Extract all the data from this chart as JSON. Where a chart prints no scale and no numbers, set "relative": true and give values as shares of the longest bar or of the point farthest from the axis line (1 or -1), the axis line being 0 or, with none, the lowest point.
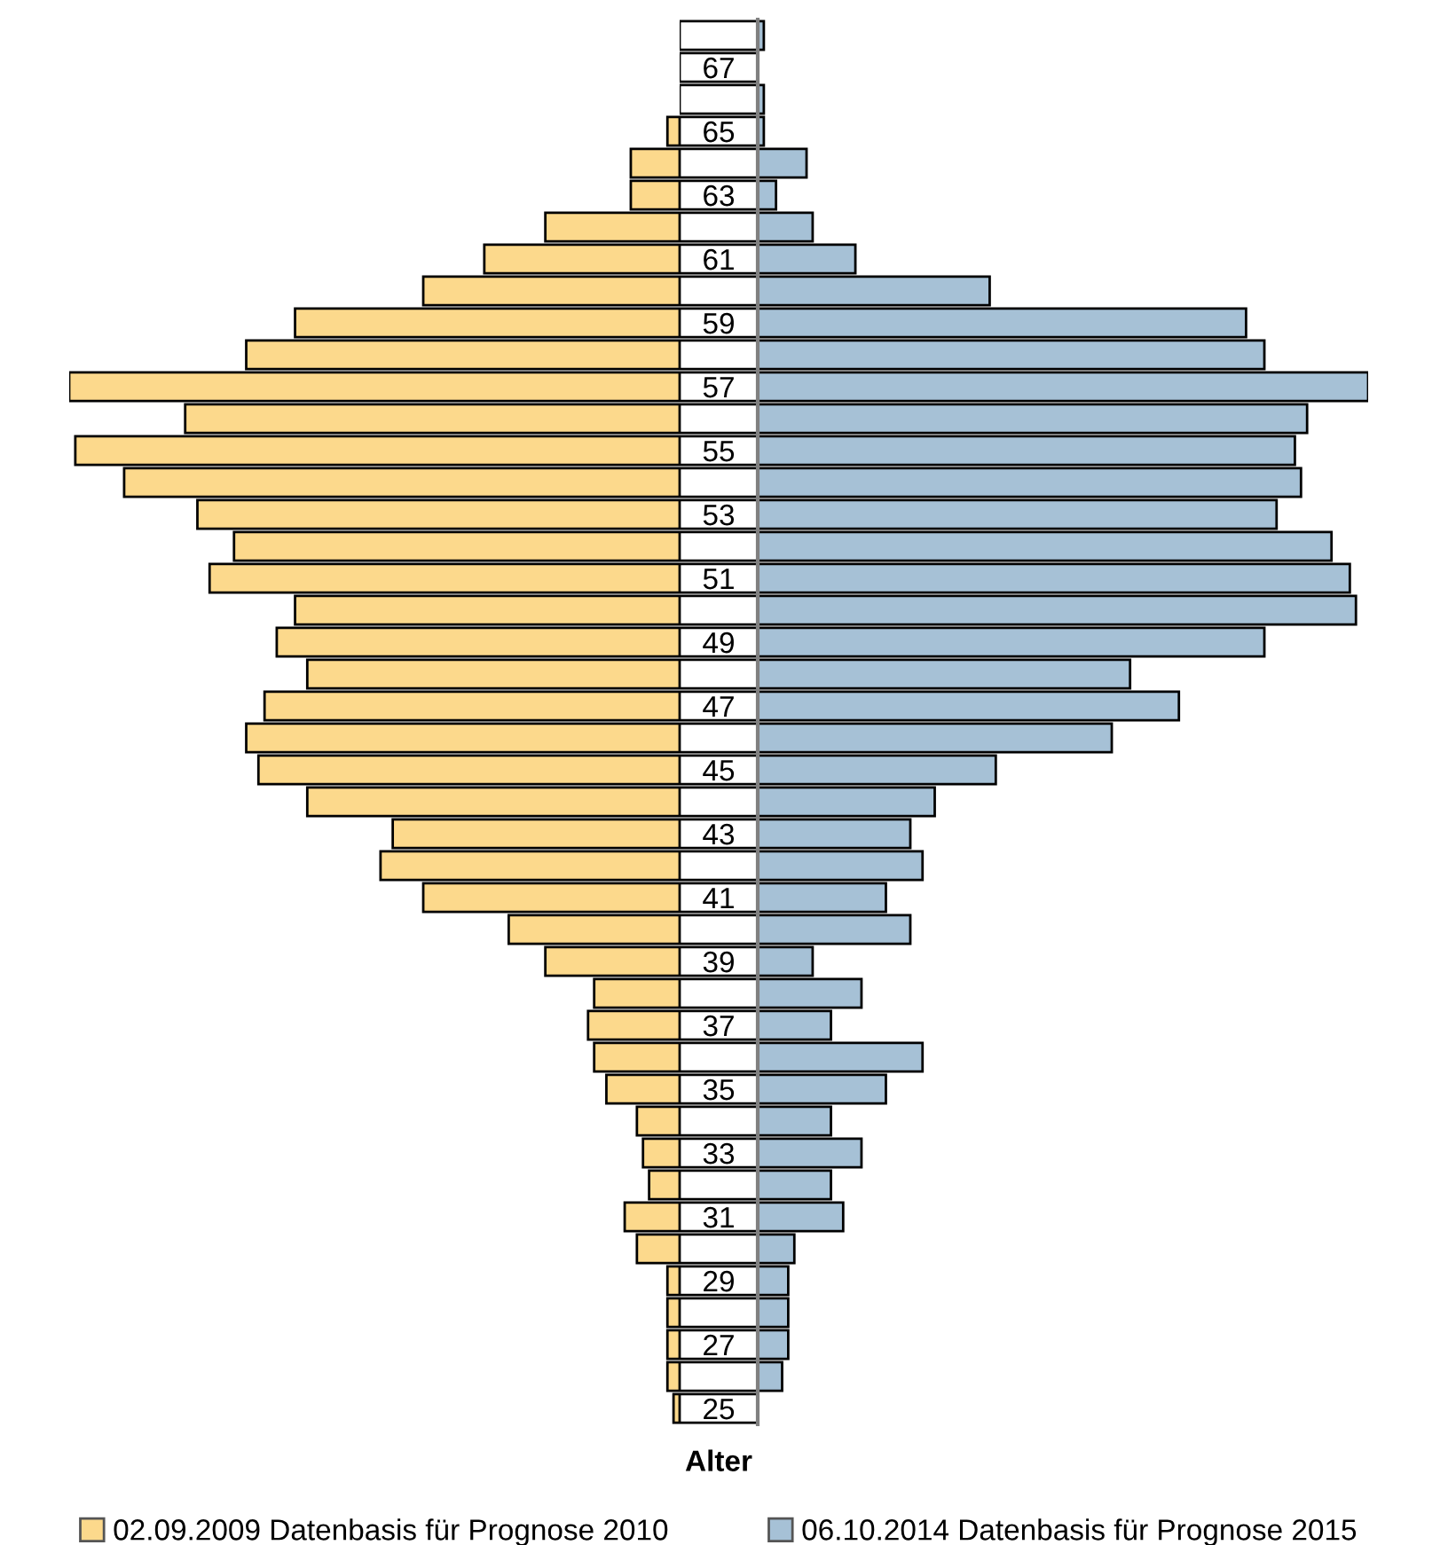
{
  "chart_data": [
    {
      "type": "bar",
      "orientation": "horizontal",
      "relative": true,
      "legend": "bottom",
      "tick_labels": false,
      "categories": [
        null,
        "67",
        null,
        "65",
        null,
        "63",
        null,
        "61",
        null,
        "59",
        null,
        "57",
        null,
        "55",
        null,
        "53",
        null,
        "51",
        null,
        "49",
        null,
        "47",
        null,
        "45",
        null,
        "43",
        null,
        "41",
        null,
        "39",
        null,
        "37",
        null,
        "35",
        null,
        "33",
        null,
        "31",
        null,
        "29",
        null,
        "27",
        null,
        "25"
      ],
      "series": [
        {
          "name": "02.09.2009 Datenbasis für Prognose 2010",
          "color": "#fcd98c",
          "values": [
            null,
            null,
            null,
            -0.02,
            -0.08,
            -0.08,
            -0.22,
            -0.32,
            -0.42,
            -0.63,
            -0.71,
            -1.0,
            -0.81,
            -0.99,
            -0.91,
            -0.79,
            -0.73,
            -0.77,
            -0.63,
            -0.66,
            -0.61,
            -0.68,
            -0.71,
            -0.69,
            -0.61,
            -0.47,
            -0.49,
            -0.42,
            -0.28,
            -0.22,
            -0.14,
            -0.15,
            -0.14,
            -0.12,
            -0.07,
            -0.06,
            -0.05,
            -0.09,
            -0.07,
            -0.02,
            -0.02,
            -0.02,
            -0.02,
            -0.01
          ]
        }
      ]
    },
    {
      "type": "bar",
      "orientation": "horizontal",
      "relative": true,
      "legend": "bottom",
      "tick_labels": "y",
      "xlabel": "Alter",
      "categories": [
        null,
        "67",
        null,
        "65",
        null,
        "63",
        null,
        "61",
        null,
        "59",
        null,
        "57",
        null,
        "55",
        null,
        "53",
        null,
        "51",
        null,
        "49",
        null,
        "47",
        null,
        "45",
        null,
        "43",
        null,
        "41",
        null,
        "39",
        null,
        "37",
        null,
        "35",
        null,
        "33",
        null,
        "31",
        null,
        "29",
        null,
        "27",
        null,
        "25"
      ],
      "series": [
        {
          "name": "06.10.2014 Datenbasis für Prognose 2015",
          "color": "#a6c1d6",
          "values": [
            0.01,
            null,
            0.01,
            0.01,
            0.08,
            0.03,
            0.09,
            0.16,
            0.38,
            0.8,
            0.83,
            1.0,
            0.9,
            0.88,
            0.89,
            0.85,
            0.94,
            0.97,
            0.98,
            0.83,
            0.61,
            0.69,
            0.58,
            0.39,
            0.29,
            0.25,
            0.27,
            0.21,
            0.25,
            0.09,
            0.17,
            0.12,
            0.27,
            0.21,
            0.12,
            0.17,
            0.12,
            0.14,
            0.06,
            0.05,
            0.05,
            0.05,
            0.04,
            null
          ]
        }
      ]
    }
  ]
}
